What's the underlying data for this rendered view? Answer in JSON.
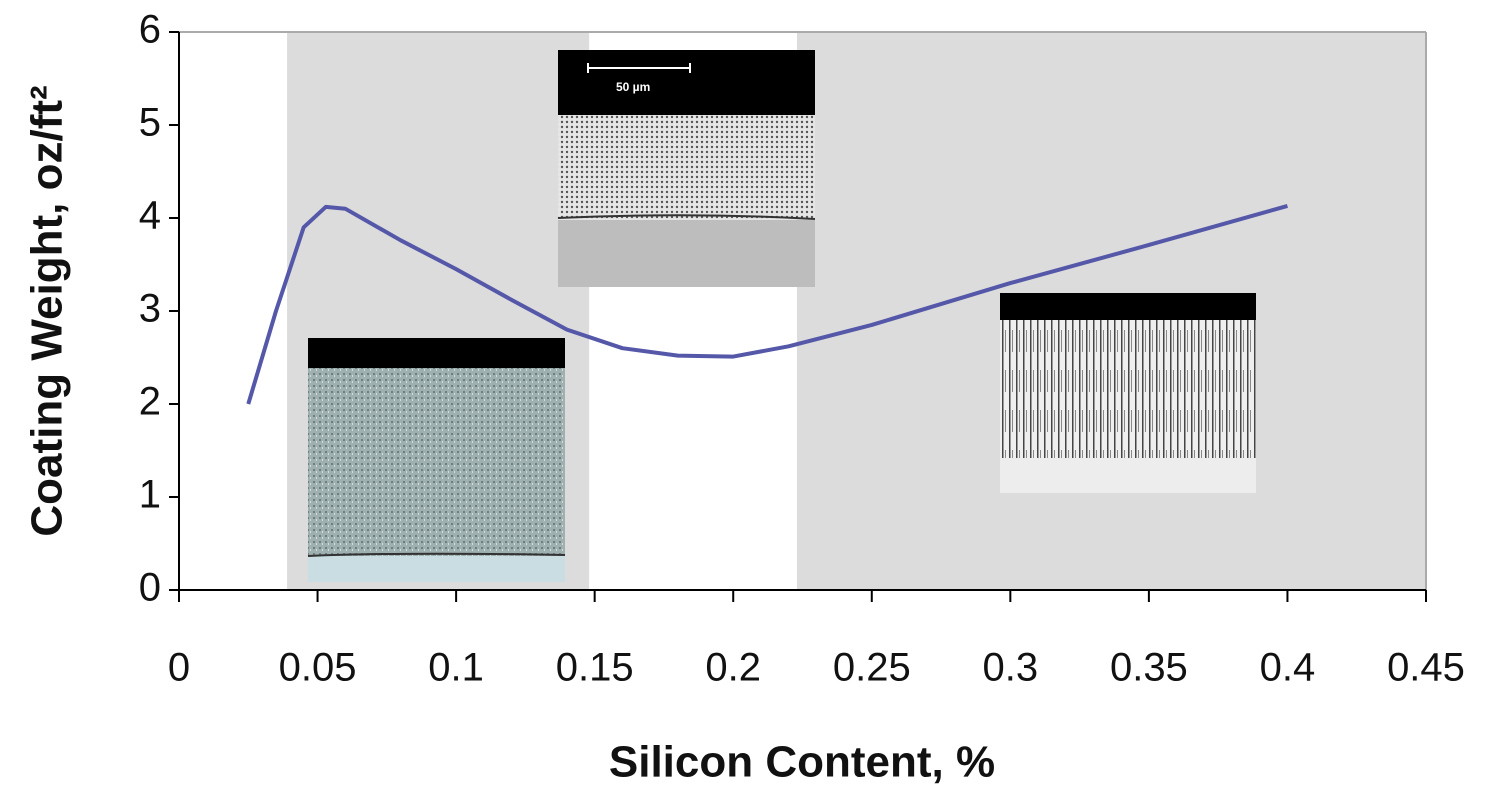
{
  "chart_data": {
    "type": "line",
    "x_label": "Silicon Content, %",
    "y_label": "Coating Weight, oz/ft²",
    "x": [
      0.025,
      0.035,
      0.045,
      0.053,
      0.06,
      0.08,
      0.1,
      0.12,
      0.14,
      0.16,
      0.18,
      0.2,
      0.22,
      0.25,
      0.3,
      0.35,
      0.4
    ],
    "series": [
      {
        "color": "#5558a8",
        "values": [
          2.0,
          3.0,
          3.9,
          4.12,
          4.1,
          3.76,
          3.45,
          3.12,
          2.8,
          2.6,
          2.52,
          2.51,
          2.62,
          2.85,
          3.3,
          3.71,
          4.13
        ]
      }
    ],
    "xlim": [
      0,
      0.45
    ],
    "ylim": [
      0,
      6
    ],
    "xticks": [
      0,
      0.05,
      0.1,
      0.15,
      0.2,
      0.25,
      0.3,
      0.35,
      0.4,
      0.45
    ],
    "yticks": [
      0,
      1,
      2,
      3,
      4,
      5,
      6
    ],
    "shaded_regions": [
      [
        0.039,
        0.148
      ],
      [
        0.223,
        0.45
      ]
    ],
    "shade_color": "#dcdcdc",
    "annotations": [
      "50 µm"
    ]
  }
}
